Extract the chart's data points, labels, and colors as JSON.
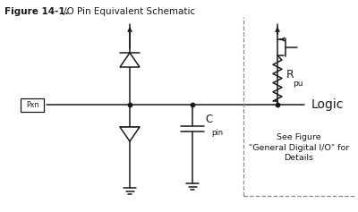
{
  "title_bold": "Figure 14-1.",
  "title_text": "I/O Pin Equivalent Schematic",
  "bg_color": "#ffffff",
  "line_color": "#1a1a1a",
  "dashed_color": "#888888",
  "fig_width": 4.0,
  "fig_height": 2.37,
  "dpi": 100,
  "label_Logic": "Logic",
  "label_Rpu": "R",
  "label_Rpu_sub": "pu",
  "label_Cpin": "C",
  "label_Cpin_sub": "pin",
  "label_Pxn": "Pxn",
  "label_see_figure": "See Figure\n\"General Digital I/O\" for\nDetails"
}
